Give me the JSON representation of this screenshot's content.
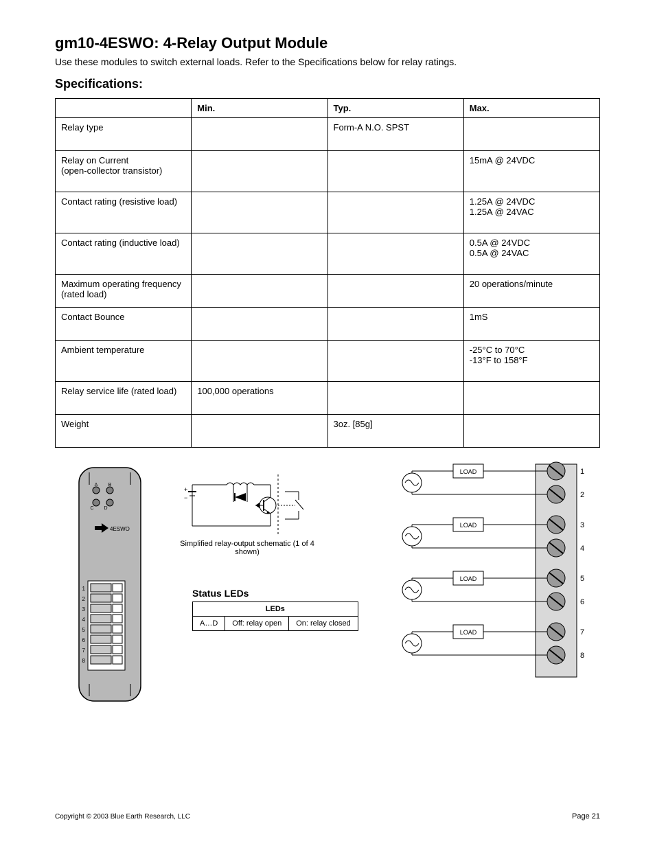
{
  "header": {
    "title": "gm10-4ESWO: 4-Relay Output Module",
    "subtitle": "Use these modules to switch external loads. Refer to the Specifications below for relay ratings."
  },
  "spec": {
    "section_label": "Specifications:",
    "columns": [
      "",
      "Min.",
      "Typ.",
      "Max."
    ],
    "rows": [
      [
        "Relay type",
        "",
        "Form-A  N.O. SPST",
        ""
      ],
      [
        "Relay on Current\n(open-collector transistor)",
        "",
        "",
        "15mA @ 24VDC"
      ],
      [
        "Contact rating (resistive load)",
        "",
        "",
        "1.25A @ 24VDC\n1.25A @ 24VAC"
      ],
      [
        "Contact rating (inductive load)",
        "",
        "",
        "0.5A @ 24VDC\n0.5A @ 24VAC"
      ],
      [
        "Maximum operating frequency\n(rated load)",
        "",
        "",
        "20 operations/minute"
      ],
      [
        "Contact Bounce",
        "",
        "",
        "1mS"
      ],
      [
        "Ambient temperature",
        "",
        "",
        "-25°C to 70°C\n-13°F to 158°F"
      ],
      [
        "Relay service life (rated load)",
        "100,000 operations",
        "",
        ""
      ],
      [
        "Weight",
        "",
        "3oz. [85g]",
        ""
      ]
    ]
  },
  "schematic_caption": "Simplified relay-output schematic (1 of 4 shown)",
  "led": {
    "label": "Status LEDs",
    "header": [
      "LEDs"
    ],
    "row": [
      "A…D",
      "Off: relay open",
      "On: relay closed"
    ]
  },
  "terminals": {
    "rows": [
      {
        "labels": [
          "1",
          "2"
        ],
        "load": "LOAD"
      },
      {
        "labels": [
          "3",
          "4"
        ],
        "load": "LOAD"
      },
      {
        "labels": [
          "5",
          "6"
        ],
        "load": "LOAD"
      },
      {
        "labels": [
          "7",
          "8"
        ],
        "load": "LOAD"
      }
    ]
  },
  "module_silkscreen": {
    "abcd": [
      "A",
      "B",
      "C",
      "D"
    ],
    "arrow_label": "4ESWO",
    "terms": [
      "1",
      "2",
      "3",
      "4",
      "5",
      "6",
      "7",
      "8"
    ]
  },
  "footer": {
    "copyright": "Copyright © 2003 Blue Earth Research, LLC",
    "page": "Page 21"
  },
  "colors": {
    "module_body": "#b8b8b8",
    "terminal_block_fill": "#d9d9d9",
    "screw_fill": "#9a9a9a",
    "line": "#000000"
  }
}
